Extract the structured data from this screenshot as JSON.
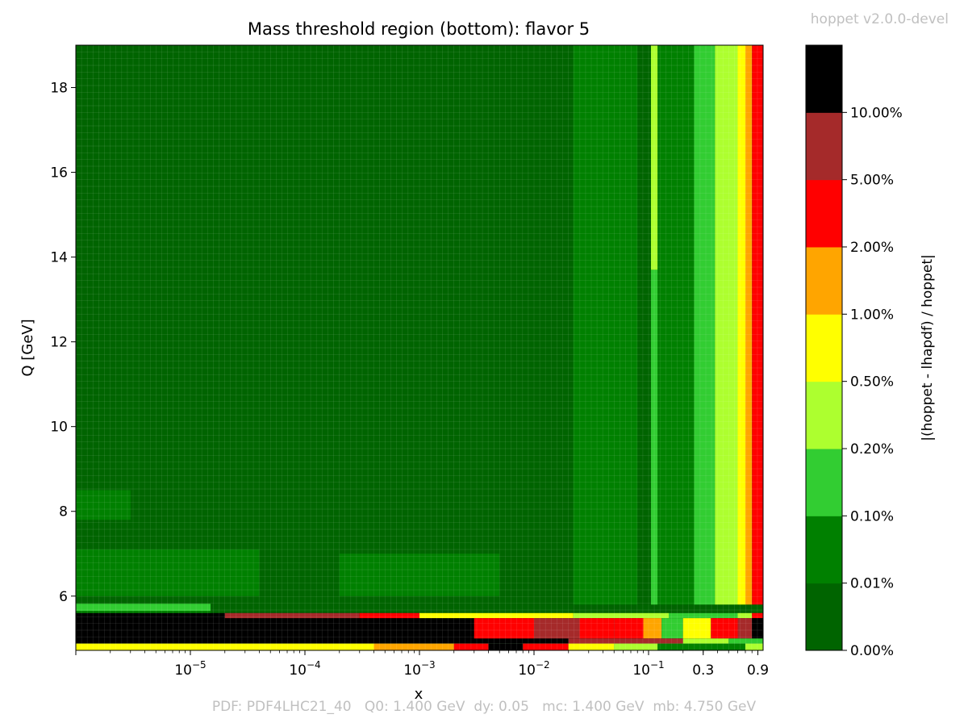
{
  "chart_data": {
    "type": "heatmap",
    "title": "Mass threshold region (bottom): flavor 5",
    "xlabel": "x",
    "ylabel": "Q [GeV]",
    "x_scale": "log",
    "xlim": [
      1e-06,
      1.0
    ],
    "ylim": [
      4.72,
      19.0
    ],
    "x_ticks": [
      {
        "value": 1e-05,
        "base": "10",
        "exp": "−5"
      },
      {
        "value": 0.0001,
        "base": "10",
        "exp": "−4"
      },
      {
        "value": 0.001,
        "base": "10",
        "exp": "−3"
      },
      {
        "value": 0.01,
        "base": "10",
        "exp": "−2"
      },
      {
        "value": 0.1,
        "base": "10",
        "exp": "−1"
      },
      {
        "value": 0.3,
        "base": "0.3",
        "exp": ""
      },
      {
        "value": 0.9,
        "base": "0.9",
        "exp": ""
      }
    ],
    "y_ticks": [
      6,
      8,
      10,
      12,
      14,
      16,
      18
    ],
    "y_tick_labels": [
      "6",
      "8",
      "10",
      "12",
      "14",
      "16",
      "18"
    ],
    "colorbar": {
      "label": "|(hoppet - lhapdf) / hoppet|",
      "levels": [
        "0.00%",
        "0.01%",
        "0.10%",
        "0.20%",
        "0.50%",
        "1.00%",
        "2.00%",
        "5.00%",
        "10.00%"
      ],
      "colors": [
        "#006400",
        "#008000",
        "#32cd32",
        "#adff2f",
        "#ffff00",
        "#ffa500",
        "#ff0000",
        "#a52a2a",
        "#000000"
      ]
    },
    "regions": [
      {
        "x": [
          1e-06,
          0.022
        ],
        "q": [
          5.8,
          19.0
        ],
        "level": 0
      },
      {
        "x": [
          0.022,
          0.08
        ],
        "q": [
          5.8,
          19.0
        ],
        "level": 1
      },
      {
        "x": [
          0.08,
          0.105
        ],
        "q": [
          5.8,
          19.0
        ],
        "level": 0
      },
      {
        "x": [
          0.105,
          0.12
        ],
        "q": [
          13.7,
          19.0
        ],
        "level": 3
      },
      {
        "x": [
          0.105,
          0.12
        ],
        "q": [
          5.8,
          13.7
        ],
        "level": 2
      },
      {
        "x": [
          0.12,
          0.25
        ],
        "q": [
          5.8,
          19.0
        ],
        "level": 1
      },
      {
        "x": [
          0.25,
          0.38
        ],
        "q": [
          5.8,
          19.0
        ],
        "level": 2
      },
      {
        "x": [
          0.38,
          0.6
        ],
        "q": [
          5.8,
          19.0
        ],
        "level": 3
      },
      {
        "x": [
          0.6,
          0.7
        ],
        "q": [
          5.8,
          19.0
        ],
        "level": 4
      },
      {
        "x": [
          0.7,
          0.8
        ],
        "q": [
          5.8,
          19.0
        ],
        "level": 5
      },
      {
        "x": [
          0.8,
          1.0
        ],
        "q": [
          5.8,
          19.0
        ],
        "level": 6
      },
      {
        "x": [
          1e-06,
          4e-05
        ],
        "q": [
          6.0,
          7.1
        ],
        "level": 1
      },
      {
        "x": [
          1e-06,
          3e-06
        ],
        "q": [
          7.8,
          8.5
        ],
        "level": 1
      },
      {
        "x": [
          0.0002,
          0.005
        ],
        "q": [
          6.0,
          7.0
        ],
        "level": 1
      },
      {
        "x": [
          1e-06,
          1.5e-05
        ],
        "q": [
          5.65,
          5.82
        ],
        "level": 2
      },
      {
        "x": [
          1e-06,
          1.5e-05
        ],
        "q": [
          5.5,
          5.65
        ],
        "level": 1
      },
      {
        "x": [
          1e-06,
          1.0
        ],
        "q": [
          4.88,
          5.6
        ],
        "level": 8
      },
      {
        "x": [
          2e-05,
          0.0003
        ],
        "q": [
          5.48,
          5.6
        ],
        "level": 7
      },
      {
        "x": [
          0.0003,
          0.001
        ],
        "q": [
          5.48,
          5.6
        ],
        "level": 6
      },
      {
        "x": [
          0.001,
          0.022
        ],
        "q": [
          5.48,
          5.6
        ],
        "level": 4
      },
      {
        "x": [
          0.022,
          0.15
        ],
        "q": [
          5.48,
          5.6
        ],
        "level": 3
      },
      {
        "x": [
          0.15,
          0.6
        ],
        "q": [
          5.48,
          5.6
        ],
        "level": 2
      },
      {
        "x": [
          0.6,
          0.8
        ],
        "q": [
          5.48,
          5.6
        ],
        "level": 3
      },
      {
        "x": [
          0.8,
          1.0
        ],
        "q": [
          5.48,
          5.6
        ],
        "level": 6
      },
      {
        "x": [
          0.003,
          0.01
        ],
        "q": [
          5.0,
          5.48
        ],
        "level": 6
      },
      {
        "x": [
          0.01,
          0.025
        ],
        "q": [
          5.0,
          5.48
        ],
        "level": 7
      },
      {
        "x": [
          0.025,
          0.05
        ],
        "q": [
          5.0,
          5.48
        ],
        "level": 6
      },
      {
        "x": [
          0.05,
          0.09
        ],
        "q": [
          5.0,
          5.48
        ],
        "level": 6
      },
      {
        "x": [
          0.09,
          0.13
        ],
        "q": [
          5.0,
          5.48
        ],
        "level": 5
      },
      {
        "x": [
          0.13,
          0.2
        ],
        "q": [
          5.0,
          5.48
        ],
        "level": 2
      },
      {
        "x": [
          0.2,
          0.35
        ],
        "q": [
          5.0,
          5.48
        ],
        "level": 4
      },
      {
        "x": [
          0.35,
          0.6
        ],
        "q": [
          5.0,
          5.48
        ],
        "level": 6
      },
      {
        "x": [
          0.6,
          0.8
        ],
        "q": [
          5.0,
          5.48
        ],
        "level": 7
      },
      {
        "x": [
          0.8,
          1.0
        ],
        "q": [
          5.0,
          5.48
        ],
        "level": 8
      },
      {
        "x": [
          0.02,
          0.2
        ],
        "q": [
          4.88,
          5.0
        ],
        "level": 7
      },
      {
        "x": [
          0.2,
          0.5
        ],
        "q": [
          4.88,
          5.0
        ],
        "level": 3
      },
      {
        "x": [
          0.5,
          1.0
        ],
        "q": [
          4.88,
          5.0
        ],
        "level": 2
      },
      {
        "x": [
          1e-06,
          0.0004
        ],
        "q": [
          4.72,
          4.88
        ],
        "level": 4
      },
      {
        "x": [
          0.0004,
          0.002
        ],
        "q": [
          4.72,
          4.88
        ],
        "level": 5
      },
      {
        "x": [
          0.002,
          0.004
        ],
        "q": [
          4.72,
          4.88
        ],
        "level": 6
      },
      {
        "x": [
          0.004,
          0.008
        ],
        "q": [
          4.72,
          4.88
        ],
        "level": 8
      },
      {
        "x": [
          0.008,
          0.02
        ],
        "q": [
          4.72,
          4.88
        ],
        "level": 6
      },
      {
        "x": [
          0.02,
          0.05
        ],
        "q": [
          4.72,
          4.88
        ],
        "level": 4
      },
      {
        "x": [
          0.05,
          0.12
        ],
        "q": [
          4.72,
          4.88
        ],
        "level": 3
      },
      {
        "x": [
          0.12,
          0.7
        ],
        "q": [
          4.72,
          4.88
        ],
        "level": 1
      },
      {
        "x": [
          0.7,
          1.0
        ],
        "q": [
          4.72,
          4.88
        ],
        "level": 3
      }
    ]
  },
  "watermark": "hoppet v2.0.0-devel",
  "footer": {
    "pdf": "PDF: PDF4LHC21_40",
    "q0": "Q0: 1.400 GeV",
    "dy": "dy: 0.05",
    "mc": "mc: 1.400 GeV",
    "mb": "mb: 4.750 GeV"
  }
}
